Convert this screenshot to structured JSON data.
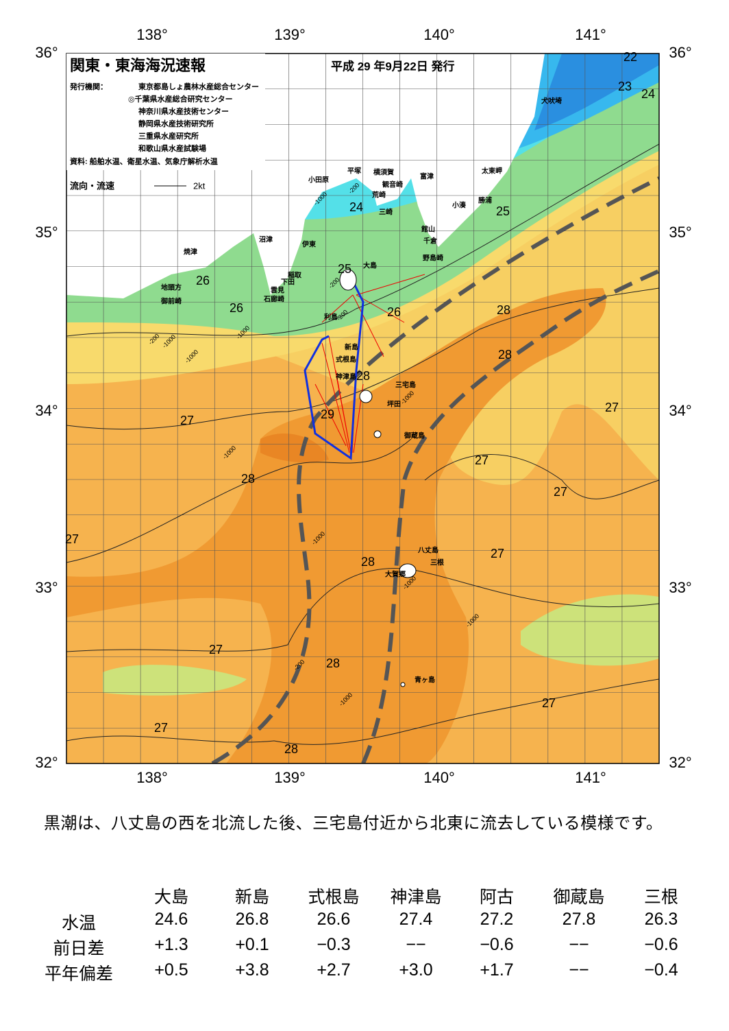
{
  "header": {
    "title": "関東・東海海況速報",
    "issued": "平成 29 年9月22日 発行",
    "publisher_label": "発行機関：",
    "agencies": [
      "東京都島しょ農林水産総合センター",
      "◎千葉県水産総合研究センター",
      "神奈川県水産技術センター",
      "静岡県水産技術研究所",
      "三重県水産研究所",
      "和歌山県水産試験場"
    ],
    "source": "資料: 船舶水温、衛星水温、気象庁解析水温",
    "legend_label": "流向・流速",
    "legend_speed": "2kt"
  },
  "map": {
    "lon_labels": [
      "138°",
      "139°",
      "140°",
      "141°"
    ],
    "lat_labels": [
      "36°",
      "35°",
      "34°",
      "33°",
      "32°"
    ],
    "places": [
      "犬吠埼",
      "太東岬",
      "勝浦",
      "小湊",
      "富津",
      "館山",
      "千倉",
      "野島崎",
      "横須賀",
      "観音崎",
      "荒崎",
      "三崎",
      "平塚",
      "小田原",
      "沼津",
      "伊東",
      "稲取",
      "下田",
      "雲見",
      "石廊崎",
      "焼津",
      "地頭方",
      "御前崎",
      "大島",
      "利島",
      "新島",
      "式根島",
      "神津島",
      "三宅島",
      "坪田",
      "御蔵島",
      "八丈島",
      "三根",
      "大賀郷",
      "青ヶ島"
    ],
    "isotherm_labels": [
      22,
      23,
      24,
      24,
      25,
      25,
      26,
      26,
      26,
      28,
      28,
      28,
      27,
      29,
      27,
      28,
      27,
      27,
      27,
      27,
      28,
      27,
      28,
      27,
      27,
      28
    ],
    "depth_labels": [
      -200,
      -1000,
      -200,
      -1000,
      -1000,
      -200,
      -1000,
      -1000,
      -1000,
      -1000,
      -1000,
      -200,
      -1000,
      -1000,
      -200
    ]
  },
  "summary": "黒潮は、八丈島の西を北流した後、三宅島付近から北東に流去している模様です。",
  "table": {
    "columns": [
      "大島",
      "新島",
      "式根島",
      "神津島",
      "阿古",
      "御蔵島",
      "三根"
    ],
    "rows": [
      {
        "label": "水温",
        "cells": [
          "24.6",
          "26.8",
          "26.6",
          "27.4",
          "27.2",
          "27.8",
          "26.3"
        ]
      },
      {
        "label": "前日差",
        "cells": [
          "+1.3",
          "+0.1",
          "−0.3",
          "−−",
          "−0.6",
          "−−",
          "−0.6"
        ]
      },
      {
        "label": "平年偏差",
        "cells": [
          "+0.5",
          "+3.8",
          "+2.7",
          "+3.0",
          "+1.7",
          "−−",
          "−0.4"
        ]
      }
    ]
  }
}
